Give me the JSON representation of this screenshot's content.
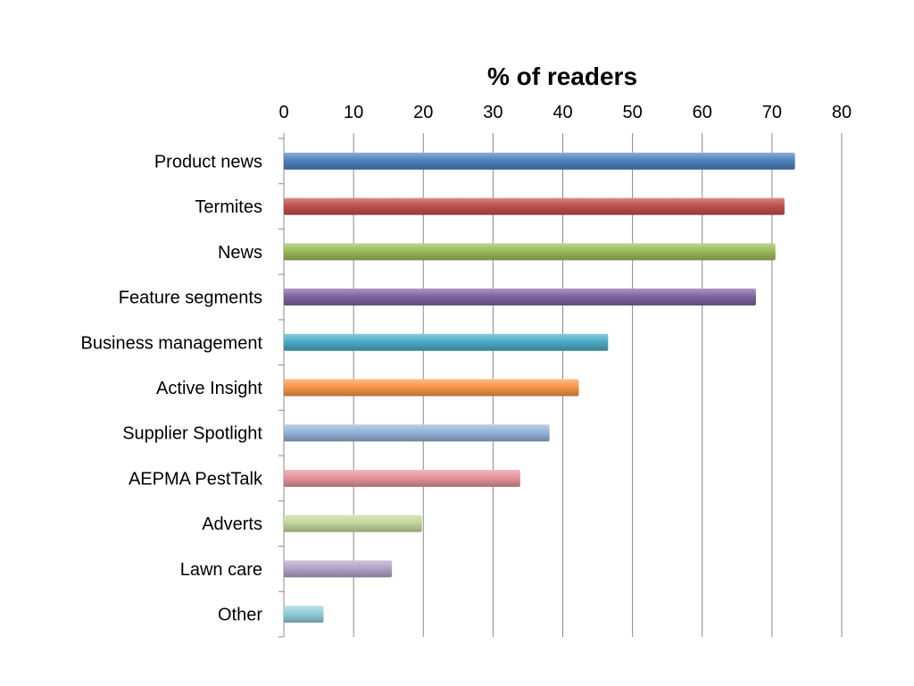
{
  "chart_data": {
    "type": "bar",
    "orientation": "horizontal",
    "title": "% of readers",
    "xlabel": "",
    "ylabel": "",
    "axis_position": "top",
    "xlim": [
      0,
      80
    ],
    "x_ticks": [
      0,
      10,
      20,
      30,
      40,
      50,
      60,
      70,
      80
    ],
    "grid": true,
    "legend": "none",
    "categories": [
      "Product news",
      "Termites",
      "News",
      "Feature segments",
      "Business management",
      "Active Insight",
      "Supplier Spotlight",
      "AEPMA PestTalk",
      "Adverts",
      "Lawn care",
      "Other"
    ],
    "values": [
      73.3,
      71.8,
      70.5,
      67.7,
      46.5,
      42.3,
      38.1,
      33.9,
      19.8,
      15.5,
      5.7
    ],
    "colors": [
      "#4f81bd",
      "#c0504d",
      "#9bbb59",
      "#8064a2",
      "#4bacc6",
      "#f79646",
      "#95b3d7",
      "#e6949a",
      "#c3d69b",
      "#b3a2c7",
      "#93cddd"
    ]
  }
}
